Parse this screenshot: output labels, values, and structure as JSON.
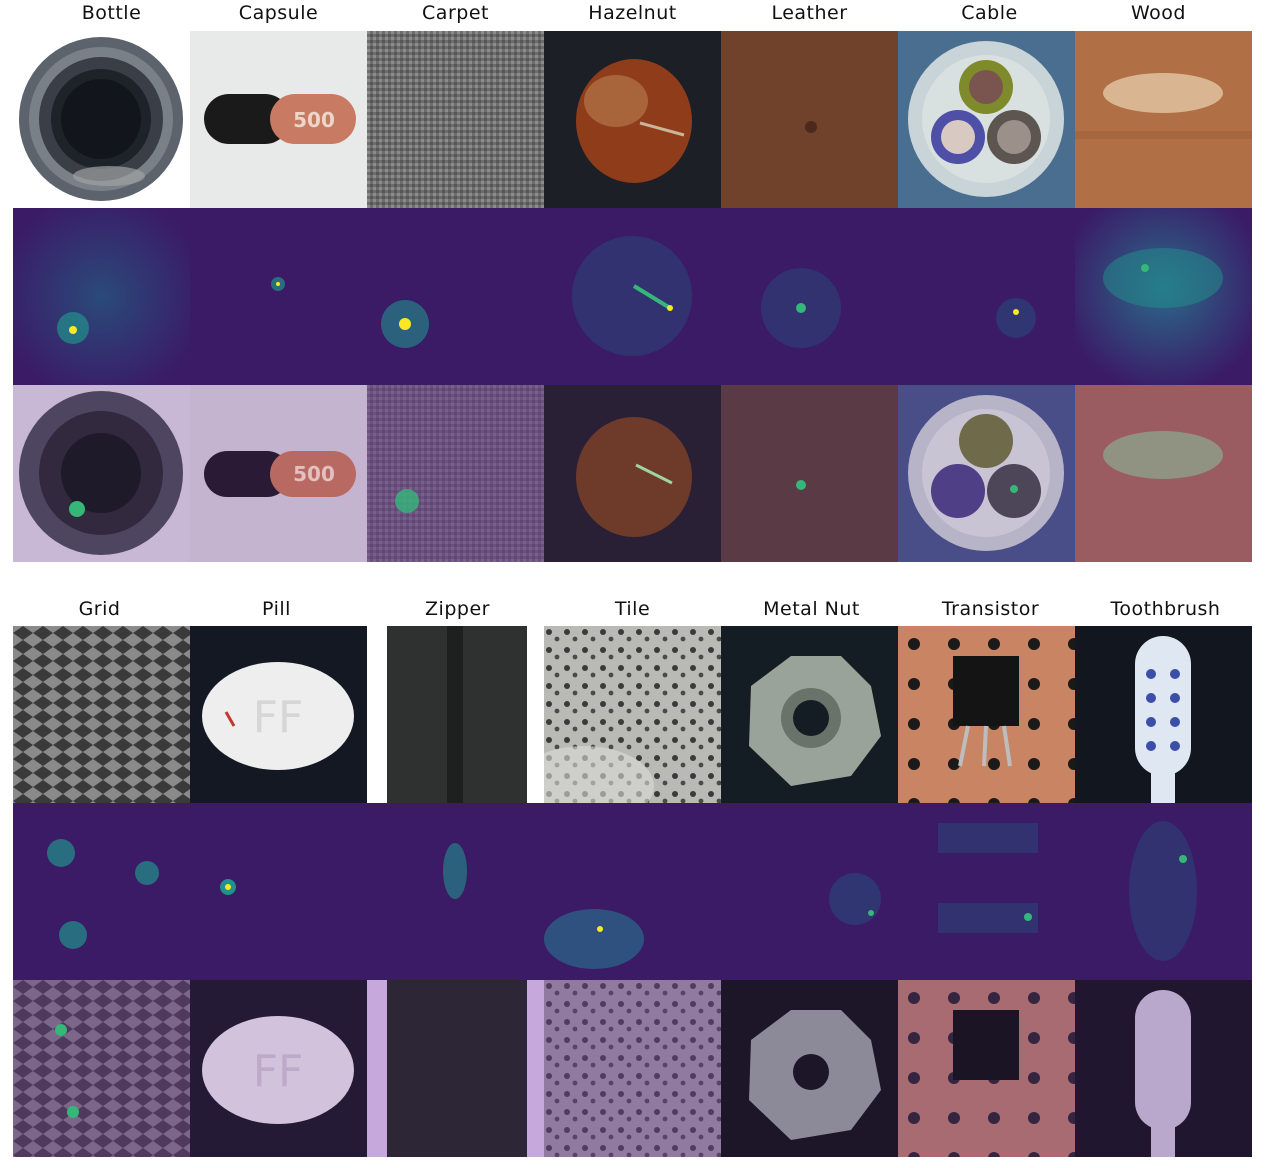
{
  "block_top": {
    "categories": [
      "Bottle",
      "Capsule",
      "Carpet",
      "Hazelnut",
      "Leather",
      "Cable",
      "Wood"
    ]
  },
  "block_bottom": {
    "categories": [
      "Grid",
      "Pill",
      "Zipper",
      "Tile",
      "Metal Nut",
      "Transistor",
      "Toothbrush"
    ]
  },
  "capsule_text": "500",
  "pill_text": "FF",
  "colors": {
    "heatmap_base": "#3b1a66",
    "heatmap_mid": "#21918c",
    "heatmap_hot": "#fde725",
    "overlay_tint": "#6a3c8c"
  }
}
